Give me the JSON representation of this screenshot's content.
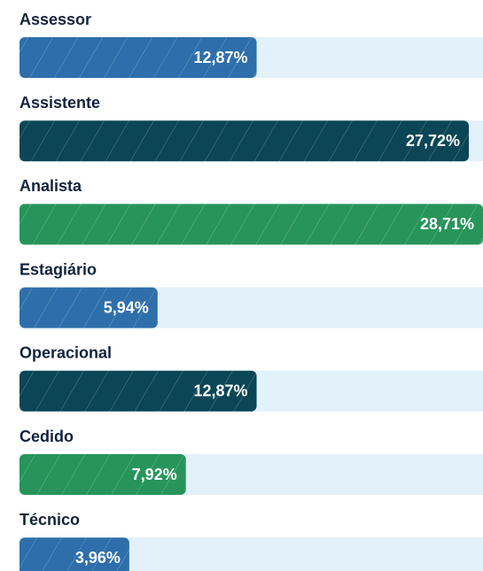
{
  "chart_data": {
    "type": "bar",
    "categories": [
      "Assessor",
      "Assistente",
      "Analista",
      "Estagiário",
      "Operacional",
      "Cedido",
      "Técnico"
    ],
    "values": [
      12.87,
      27.72,
      28.71,
      5.94,
      12.87,
      7.92,
      3.96
    ],
    "value_labels": [
      "12,87%",
      "27,72%",
      "28,71%",
      "5,94%",
      "12,87%",
      "7,92%",
      "3,96%"
    ],
    "colors": [
      "#2e6fab",
      "#0b4656",
      "#27955a",
      "#2e6fab",
      "#0b4656",
      "#27955a",
      "#2e6fab"
    ]
  }
}
